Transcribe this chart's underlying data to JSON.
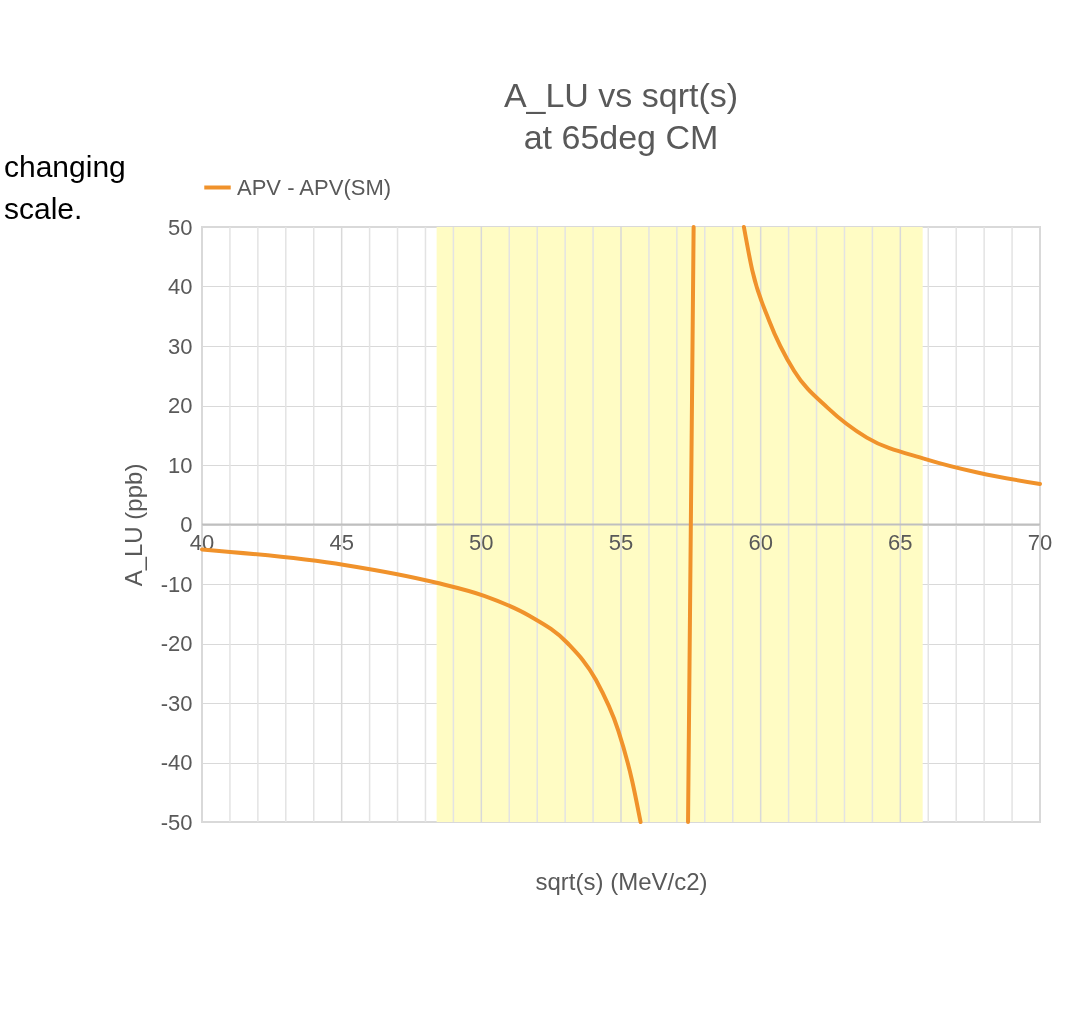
{
  "chart_data": {
    "type": "line",
    "title": "A_LU vs sqrt(s)",
    "subtitle": "at 65deg CM",
    "xlabel": "sqrt(s) (MeV/c2)",
    "ylabel": "A_LU (ppb)",
    "annotations": [
      "changing scale."
    ],
    "x": [
      40,
      45.1,
      48.4,
      50.1,
      51.7,
      53.1,
      54.1,
      54.9,
      55.4,
      55.7,
      56.5,
      57.4,
      57.6,
      58.5,
      59.4,
      59.7,
      60.3,
      61.2,
      62.4,
      63.8,
      65.9,
      67.8,
      70
    ],
    "series": [
      {
        "name": "APV - APV(SM)",
        "color": "#f0922b",
        "values": [
          -4.2,
          -6.8,
          -9.8,
          -12.0,
          -15.3,
          -20.0,
          -26.1,
          -34.6,
          -43.1,
          -50,
          null,
          -50,
          50,
          null,
          50,
          42.7,
          34.3,
          25.8,
          19.6,
          14.6,
          11.0,
          8.7,
          6.8
        ]
      }
    ],
    "bands": [
      {
        "axis": "x",
        "from": 48.4,
        "to": 65.8,
        "color": "#fffcc4"
      }
    ],
    "xlim": [
      40,
      70
    ],
    "ylim": [
      -50,
      50
    ],
    "xticks": [
      40,
      {
        "value": 41,
        "label": null
      },
      {
        "value": 42,
        "label": null
      },
      {
        "value": 43,
        "label": null
      },
      {
        "value": 44,
        "label": null
      },
      45,
      {
        "value": 46,
        "label": null
      },
      {
        "value": 47,
        "label": null
      },
      {
        "value": 48,
        "label": null
      },
      {
        "value": 49,
        "label": null
      },
      50,
      {
        "value": 51,
        "label": null
      },
      {
        "value": 52,
        "label": null
      },
      {
        "value": 53,
        "label": null
      },
      {
        "value": 54,
        "label": null
      },
      55,
      {
        "value": 56,
        "label": null
      },
      {
        "value": 57,
        "label": null
      },
      {
        "value": 58,
        "label": null
      },
      {
        "value": 59,
        "label": null
      },
      60,
      {
        "value": 61,
        "label": null
      },
      {
        "value": 62,
        "label": null
      },
      {
        "value": 63,
        "label": null
      },
      {
        "value": 64,
        "label": null
      },
      65,
      {
        "value": 66,
        "label": null
      },
      {
        "value": 67,
        "label": null
      },
      {
        "value": 68,
        "label": null
      },
      {
        "value": 69,
        "label": null
      },
      70
    ],
    "yticks": [
      -50,
      -40,
      -30,
      -20,
      -10,
      0,
      10,
      20,
      30,
      40,
      50
    ],
    "grid": true,
    "legend": "top",
    "marker": "none",
    "line_style": "solid"
  }
}
